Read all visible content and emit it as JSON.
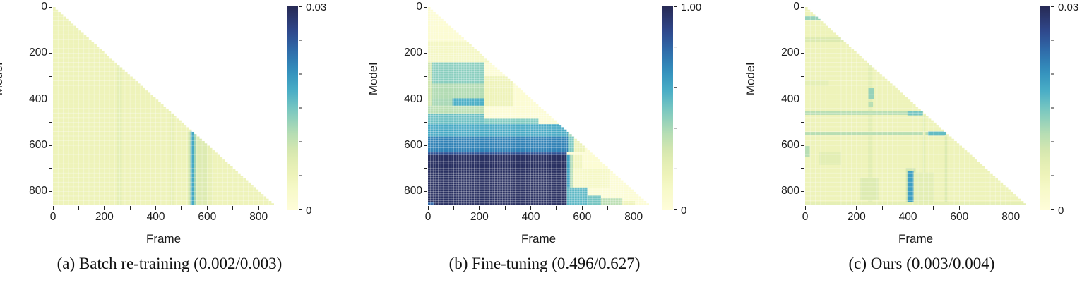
{
  "colors": {
    "background": "#ffffff",
    "text": "#1a1a1a",
    "tick": "#222222",
    "grid": "#ffffff"
  },
  "colormap_stops": [
    [
      0.0,
      "#fffdd9"
    ],
    [
      0.08,
      "#f8facc"
    ],
    [
      0.17,
      "#eef3b9"
    ],
    [
      0.28,
      "#d9e9af"
    ],
    [
      0.38,
      "#b3dcb4"
    ],
    [
      0.48,
      "#7fcac0"
    ],
    [
      0.58,
      "#4bafc6"
    ],
    [
      0.68,
      "#3390bd"
    ],
    [
      0.78,
      "#2f6cab"
    ],
    [
      0.87,
      "#2f4a8f"
    ],
    [
      0.94,
      "#2c386f"
    ],
    [
      1.0,
      "#272a55"
    ]
  ],
  "chart_data": [
    {
      "type": "heatmap",
      "panel": "a",
      "caption": "(a) Batch re-training (0.002/0.003)",
      "scores": "0.002/0.003",
      "xlabel": "Frame",
      "ylabel": "Model",
      "axis_max": 860,
      "shape": "lower-triangular",
      "ticks": {
        "major": [
          0,
          200,
          400,
          600,
          800
        ],
        "minor": [
          100,
          300,
          500,
          700
        ]
      },
      "colorbar": {
        "vmax": 0.03,
        "max_label": "0.03",
        "min_label": "0",
        "tick_values": [
          0,
          0.005,
          0.01,
          0.015,
          0.02,
          0.025,
          0.03
        ]
      },
      "base_value": 0.005,
      "grid_step": 20,
      "regions": [
        [
          248,
          268,
          248,
          860,
          0.0065
        ],
        [
          455,
          470,
          455,
          860,
          0.006
        ],
        [
          526,
          535,
          540,
          860,
          0.009
        ],
        [
          535,
          547,
          535,
          860,
          0.018
        ],
        [
          547,
          558,
          547,
          860,
          0.0125
        ],
        [
          558,
          600,
          555,
          860,
          0.0078
        ],
        [
          600,
          622,
          600,
          860,
          0.006
        ]
      ]
    },
    {
      "type": "heatmap",
      "panel": "b",
      "caption": "(b) Fine-tuning (0.496/0.627)",
      "scores": "0.496/0.627",
      "xlabel": "Frame",
      "ylabel": "Model",
      "axis_max": 860,
      "shape": "lower-triangular",
      "ticks": {
        "major": [
          0,
          200,
          400,
          600,
          800
        ],
        "minor": [
          100,
          300,
          500,
          700
        ]
      },
      "colorbar": {
        "vmax": 1.0,
        "max_label": "1.00",
        "min_label": "0",
        "tick_values": [
          0,
          0.2,
          0.4,
          0.6,
          0.8,
          1.0
        ]
      },
      "base_value": 0.04,
      "grid_step": 10,
      "regions": [
        [
          0,
          860,
          148,
          245,
          0.12
        ],
        [
          0,
          15,
          240,
          465,
          0.3
        ],
        [
          15,
          218,
          240,
          332,
          0.46
        ],
        [
          15,
          218,
          332,
          396,
          0.38
        ],
        [
          218,
          332,
          300,
          430,
          0.17
        ],
        [
          15,
          95,
          396,
          428,
          0.4
        ],
        [
          95,
          218,
          396,
          428,
          0.58
        ],
        [
          0,
          218,
          428,
          465,
          0.36
        ],
        [
          0,
          218,
          465,
          508,
          0.52
        ],
        [
          218,
          430,
          482,
          508,
          0.48
        ],
        [
          0,
          545,
          508,
          562,
          0.6
        ],
        [
          545,
          585,
          508,
          562,
          0.42
        ],
        [
          0,
          545,
          562,
          628,
          0.72
        ],
        [
          545,
          568,
          562,
          628,
          0.5
        ],
        [
          568,
          610,
          570,
          628,
          0.18
        ],
        [
          0,
          540,
          628,
          860,
          0.97
        ],
        [
          0,
          540,
          628,
          642,
          0.85
        ],
        [
          540,
          553,
          642,
          783,
          0.62
        ],
        [
          553,
          566,
          642,
          783,
          0.38
        ],
        [
          566,
          600,
          642,
          783,
          0.14
        ],
        [
          566,
          705,
          700,
          783,
          0.11
        ],
        [
          540,
          620,
          783,
          860,
          0.55
        ],
        [
          620,
          673,
          818,
          860,
          0.5
        ],
        [
          673,
          756,
          828,
          860,
          0.36
        ],
        [
          756,
          805,
          842,
          860,
          0.16
        ],
        [
          0,
          25,
          845,
          860,
          0.8
        ]
      ]
    },
    {
      "type": "heatmap",
      "panel": "c",
      "caption": "(c) Ours (0.003/0.004)",
      "scores": "0.003/0.004",
      "xlabel": "Frame",
      "ylabel": "Model",
      "axis_max": 860,
      "shape": "lower-triangular",
      "ticks": {
        "major": [
          0,
          200,
          400,
          600,
          800
        ],
        "minor": [
          100,
          300,
          500,
          700
        ]
      },
      "colorbar": {
        "vmax": 0.03,
        "max_label": "0.03",
        "min_label": "0",
        "tick_values": [
          0,
          0.005,
          0.01,
          0.015,
          0.02,
          0.025,
          0.03
        ]
      },
      "base_value": 0.005,
      "grid_step": 20,
      "regions": [
        [
          0,
          60,
          38,
          56,
          0.013
        ],
        [
          0,
          150,
          132,
          150,
          0.008
        ],
        [
          0,
          92,
          318,
          342,
          0.0065
        ],
        [
          245,
          262,
          245,
          860,
          0.0068
        ],
        [
          246,
          268,
          352,
          400,
          0.013
        ],
        [
          246,
          264,
          413,
          432,
          0.011
        ],
        [
          0,
          458,
          453,
          468,
          0.011
        ],
        [
          398,
          458,
          450,
          470,
          0.015
        ],
        [
          0,
          545,
          542,
          557,
          0.011
        ],
        [
          478,
          548,
          540,
          558,
          0.016
        ],
        [
          543,
          553,
          557,
          860,
          0.0078
        ],
        [
          458,
          468,
          468,
          860,
          0.0068
        ],
        [
          0,
          18,
          603,
          650,
          0.011
        ],
        [
          55,
          140,
          628,
          685,
          0.0068
        ],
        [
          215,
          285,
          743,
          835,
          0.0078
        ],
        [
          392,
          430,
          698,
          858,
          0.009
        ],
        [
          398,
          422,
          712,
          850,
          0.019
        ],
        [
          422,
          500,
          718,
          850,
          0.0068
        ],
        [
          0,
          860,
          846,
          860,
          0.0065
        ]
      ]
    }
  ]
}
